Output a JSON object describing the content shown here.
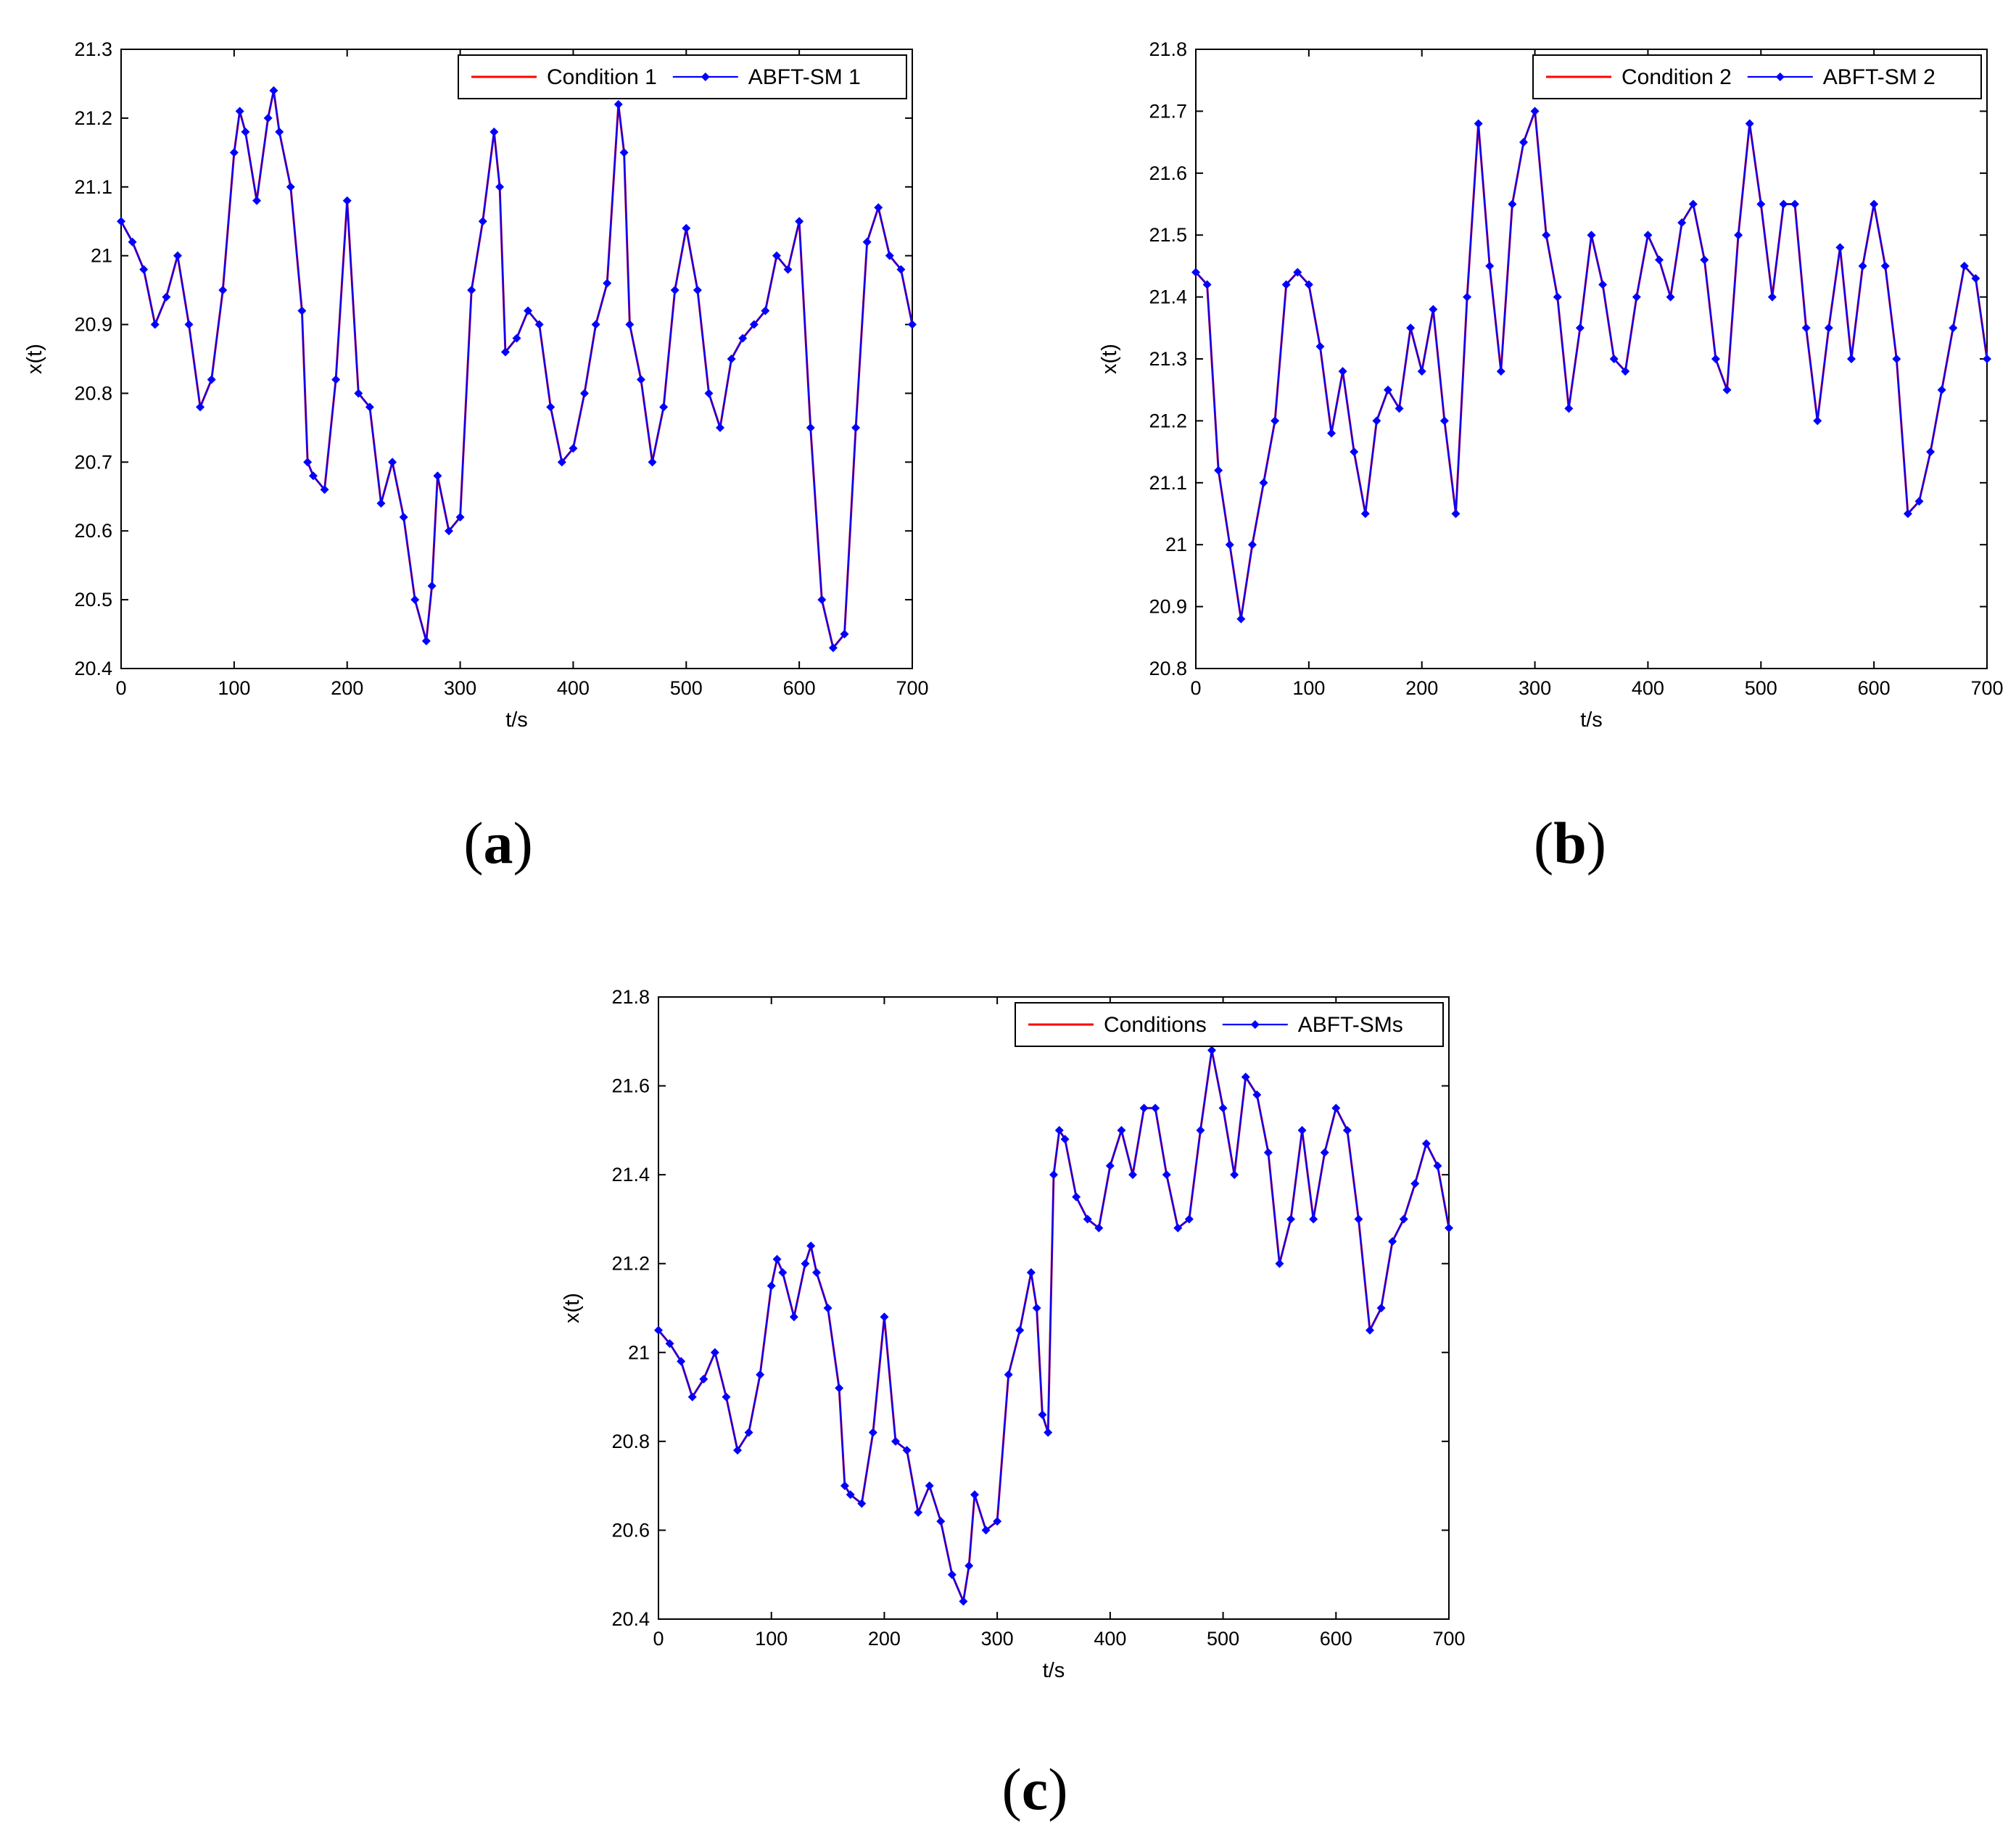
{
  "chart_data": [
    {
      "id": "a",
      "type": "line",
      "panel_label": "a",
      "xlabel": "t/s",
      "ylabel": "x(t)",
      "xlim": [
        0,
        700
      ],
      "ylim": [
        20.4,
        21.3
      ],
      "xticks": [
        0,
        100,
        200,
        300,
        400,
        500,
        600,
        700
      ],
      "yticks": [
        20.4,
        20.5,
        20.6,
        20.7,
        20.8,
        20.9,
        21,
        21.1,
        21.2,
        21.3
      ],
      "ytick_labels": [
        "20.4",
        "20.5",
        "20.6",
        "20.7",
        "20.8",
        "20.9",
        "21",
        "21.1",
        "21.2",
        "21.3"
      ],
      "legend_position": "top-right",
      "series": [
        {
          "name": "Condition 1",
          "color": "#ff0000",
          "marker": "none"
        },
        {
          "name": "ABFT-SM 1",
          "color": "#0000ff",
          "marker": "diamond"
        }
      ],
      "x": [
        0,
        10,
        20,
        30,
        40,
        50,
        60,
        70,
        80,
        90,
        100,
        105,
        110,
        120,
        130,
        135,
        140,
        150,
        160,
        165,
        170,
        180,
        190,
        200,
        210,
        220,
        230,
        240,
        250,
        260,
        270,
        275,
        280,
        290,
        300,
        310,
        320,
        330,
        335,
        340,
        350,
        360,
        370,
        380,
        390,
        400,
        410,
        420,
        430,
        440,
        445,
        450,
        460,
        470,
        480,
        490,
        500,
        510,
        520,
        530,
        540,
        550,
        560,
        570,
        580,
        590,
        600,
        610,
        620,
        630,
        640,
        650,
        660,
        670,
        680,
        690,
        700
      ],
      "y": [
        21.05,
        21.02,
        20.98,
        20.9,
        20.94,
        21.0,
        20.9,
        20.78,
        20.82,
        20.95,
        21.15,
        21.21,
        21.18,
        21.08,
        21.2,
        21.24,
        21.18,
        21.1,
        20.92,
        20.7,
        20.68,
        20.66,
        20.82,
        21.08,
        20.8,
        20.78,
        20.64,
        20.7,
        20.62,
        20.5,
        20.44,
        20.52,
        20.68,
        20.6,
        20.62,
        20.95,
        21.05,
        21.18,
        21.1,
        20.86,
        20.88,
        20.92,
        20.9,
        20.78,
        20.7,
        20.72,
        20.8,
        20.9,
        20.96,
        21.22,
        21.15,
        20.9,
        20.82,
        20.7,
        20.78,
        20.95,
        21.04,
        20.95,
        20.8,
        20.75,
        20.85,
        20.88,
        20.9,
        20.92,
        21.0,
        20.98,
        21.05,
        20.75,
        20.5,
        20.43,
        20.45,
        20.75,
        21.02,
        21.07,
        21.0,
        20.98,
        20.9
      ]
    },
    {
      "id": "b",
      "type": "line",
      "panel_label": "b",
      "xlabel": "t/s",
      "ylabel": "x(t)",
      "xlim": [
        0,
        700
      ],
      "ylim": [
        20.8,
        21.8
      ],
      "xticks": [
        0,
        100,
        200,
        300,
        400,
        500,
        600,
        700
      ],
      "yticks": [
        20.8,
        20.9,
        21,
        21.1,
        21.2,
        21.3,
        21.4,
        21.5,
        21.6,
        21.7,
        21.8
      ],
      "ytick_labels": [
        "20.8",
        "20.9",
        "21",
        "21.1",
        "21.2",
        "21.3",
        "21.4",
        "21.5",
        "21.6",
        "21.7",
        "21.8"
      ],
      "legend_position": "top-right",
      "series": [
        {
          "name": "Condition 2",
          "color": "#ff0000",
          "marker": "none"
        },
        {
          "name": "ABFT-SM 2",
          "color": "#0000ff",
          "marker": "diamond"
        }
      ],
      "x": [
        0,
        10,
        20,
        30,
        40,
        50,
        60,
        70,
        80,
        90,
        100,
        110,
        120,
        130,
        140,
        150,
        160,
        170,
        180,
        190,
        200,
        210,
        220,
        230,
        240,
        250,
        260,
        270,
        280,
        290,
        300,
        310,
        320,
        330,
        340,
        350,
        360,
        370,
        380,
        390,
        400,
        410,
        420,
        430,
        440,
        450,
        460,
        470,
        480,
        490,
        500,
        510,
        520,
        530,
        540,
        550,
        560,
        570,
        580,
        590,
        600,
        610,
        620,
        630,
        640,
        650,
        660,
        670,
        680,
        690,
        700
      ],
      "y": [
        21.44,
        21.42,
        21.12,
        21.0,
        20.88,
        21.0,
        21.1,
        21.2,
        21.42,
        21.44,
        21.42,
        21.32,
        21.18,
        21.28,
        21.15,
        21.05,
        21.2,
        21.25,
        21.22,
        21.35,
        21.28,
        21.38,
        21.2,
        21.05,
        21.4,
        21.68,
        21.45,
        21.28,
        21.55,
        21.65,
        21.7,
        21.5,
        21.4,
        21.22,
        21.35,
        21.5,
        21.42,
        21.3,
        21.28,
        21.4,
        21.5,
        21.46,
        21.4,
        21.52,
        21.55,
        21.46,
        21.3,
        21.25,
        21.5,
        21.68,
        21.55,
        21.4,
        21.55,
        21.55,
        21.35,
        21.2,
        21.35,
        21.48,
        21.3,
        21.45,
        21.55,
        21.45,
        21.3,
        21.05,
        21.07,
        21.15,
        21.25,
        21.35,
        21.45,
        21.43,
        21.3
      ]
    },
    {
      "id": "c",
      "type": "line",
      "panel_label": "c",
      "xlabel": "t/s",
      "ylabel": "x(t)",
      "xlim": [
        0,
        700
      ],
      "ylim": [
        20.4,
        21.8
      ],
      "xticks": [
        0,
        100,
        200,
        300,
        400,
        500,
        600,
        700
      ],
      "yticks": [
        20.4,
        20.6,
        20.8,
        21,
        21.2,
        21.4,
        21.6,
        21.8
      ],
      "ytick_labels": [
        "20.4",
        "20.6",
        "20.8",
        "21",
        "21.2",
        "21.4",
        "21.6",
        "21.8"
      ],
      "legend_position": "top-right",
      "series": [
        {
          "name": "Conditions",
          "color": "#ff0000",
          "marker": "none"
        },
        {
          "name": "ABFT-SMs",
          "color": "#0000ff",
          "marker": "diamond"
        }
      ],
      "x": [
        0,
        10,
        20,
        30,
        40,
        50,
        60,
        70,
        80,
        90,
        100,
        105,
        110,
        120,
        130,
        135,
        140,
        150,
        160,
        165,
        170,
        180,
        190,
        200,
        210,
        220,
        230,
        240,
        250,
        260,
        270,
        275,
        280,
        290,
        300,
        310,
        320,
        330,
        335,
        340,
        345,
        350,
        355,
        360,
        370,
        380,
        390,
        400,
        410,
        420,
        430,
        440,
        450,
        460,
        470,
        480,
        490,
        500,
        510,
        520,
        530,
        540,
        550,
        560,
        570,
        580,
        590,
        600,
        610,
        620,
        630,
        640,
        650,
        660,
        670,
        680,
        690,
        700
      ],
      "y": [
        21.05,
        21.02,
        20.98,
        20.9,
        20.94,
        21.0,
        20.9,
        20.78,
        20.82,
        20.95,
        21.15,
        21.21,
        21.18,
        21.08,
        21.2,
        21.24,
        21.18,
        21.1,
        20.92,
        20.7,
        20.68,
        20.66,
        20.82,
        21.08,
        20.8,
        20.78,
        20.64,
        20.7,
        20.62,
        20.5,
        20.44,
        20.52,
        20.68,
        20.6,
        20.62,
        20.95,
        21.05,
        21.18,
        21.1,
        20.86,
        20.82,
        21.4,
        21.5,
        21.48,
        21.35,
        21.3,
        21.28,
        21.42,
        21.5,
        21.4,
        21.55,
        21.55,
        21.4,
        21.28,
        21.3,
        21.5,
        21.68,
        21.55,
        21.4,
        21.62,
        21.58,
        21.45,
        21.2,
        21.3,
        21.5,
        21.3,
        21.45,
        21.55,
        21.5,
        21.3,
        21.05,
        21.1,
        21.25,
        21.3,
        21.38,
        21.47,
        21.42,
        21.28
      ]
    }
  ]
}
